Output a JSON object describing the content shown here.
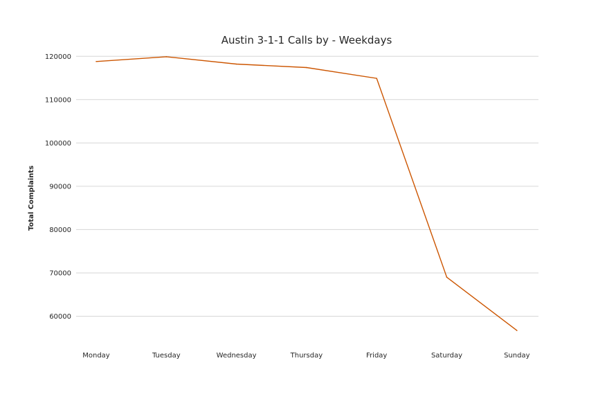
{
  "chart_data": {
    "type": "line",
    "title": "Austin 3-1-1 Calls by - Weekdays",
    "xlabel": "",
    "ylabel": "Total Complaints",
    "categories": [
      "Monday",
      "Tuesday",
      "Wednesday",
      "Thursday",
      "Friday",
      "Saturday",
      "Sunday"
    ],
    "series": [
      {
        "values": [
          118800,
          119900,
          118200,
          117400,
          114900,
          69000,
          56700
        ]
      }
    ],
    "yticks": [
      60000,
      70000,
      80000,
      90000,
      100000,
      110000,
      120000
    ],
    "ylim": [
      54000,
      121000
    ],
    "grid": "horizontal",
    "legend": "none",
    "colors": {
      "line": "#cc5500",
      "grid": "#d6d6d6",
      "text": "#262626"
    }
  }
}
